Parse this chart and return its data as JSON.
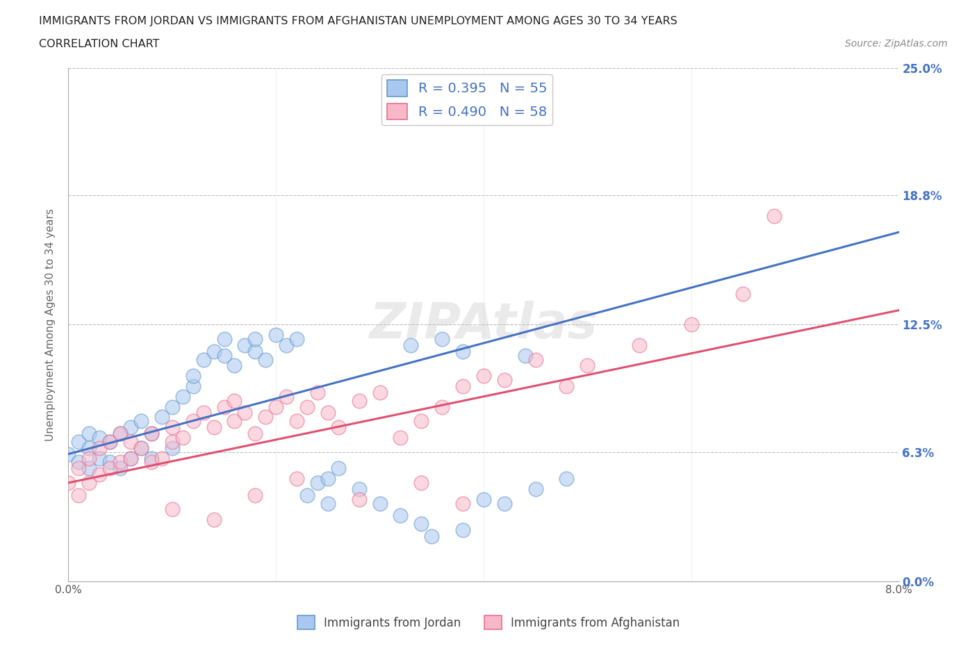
{
  "title_line1": "IMMIGRANTS FROM JORDAN VS IMMIGRANTS FROM AFGHANISTAN UNEMPLOYMENT AMONG AGES 30 TO 34 YEARS",
  "title_line2": "CORRELATION CHART",
  "source_text": "Source: ZipAtlas.com",
  "ylabel": "Unemployment Among Ages 30 to 34 years",
  "xlim": [
    0.0,
    0.08
  ],
  "ylim": [
    0.0,
    0.25
  ],
  "xticks": [
    0.0,
    0.02,
    0.04,
    0.06,
    0.08
  ],
  "xticklabels": [
    "0.0%",
    "",
    "",
    "",
    "8.0%"
  ],
  "yticks": [
    0.0,
    0.063,
    0.125,
    0.188,
    0.25
  ],
  "yticklabels_right": [
    "0.0%",
    "6.3%",
    "12.5%",
    "18.8%",
    "25.0%"
  ],
  "jordan_color": "#a8c8f0",
  "afghanistan_color": "#f8b8ca",
  "jordan_edge_color": "#6699cc",
  "afghanistan_edge_color": "#e87090",
  "jordan_line_color": "#4472c4",
  "afghanistan_line_color": "#e05070",
  "jordan_R": 0.395,
  "jordan_N": 55,
  "afghanistan_R": 0.49,
  "afghanistan_N": 58,
  "jordan_intercept": 0.062,
  "jordan_slope": 1.35,
  "afghanistan_intercept": 0.048,
  "afghanistan_slope": 1.05,
  "background_color": "#ffffff",
  "grid_color": "#bbbbbb",
  "jordan_x": [
    0.0,
    0.001,
    0.001,
    0.002,
    0.002,
    0.002,
    0.003,
    0.003,
    0.004,
    0.004,
    0.005,
    0.005,
    0.006,
    0.006,
    0.007,
    0.007,
    0.008,
    0.008,
    0.009,
    0.01,
    0.01,
    0.011,
    0.012,
    0.012,
    0.013,
    0.014,
    0.015,
    0.015,
    0.016,
    0.017,
    0.018,
    0.018,
    0.019,
    0.02,
    0.021,
    0.022,
    0.023,
    0.024,
    0.025,
    0.025,
    0.026,
    0.028,
    0.03,
    0.032,
    0.034,
    0.035,
    0.038,
    0.04,
    0.042,
    0.045,
    0.033,
    0.036,
    0.038,
    0.044,
    0.048
  ],
  "jordan_y": [
    0.062,
    0.058,
    0.068,
    0.055,
    0.065,
    0.072,
    0.06,
    0.07,
    0.058,
    0.068,
    0.055,
    0.072,
    0.06,
    0.075,
    0.065,
    0.078,
    0.06,
    0.072,
    0.08,
    0.065,
    0.085,
    0.09,
    0.095,
    0.1,
    0.108,
    0.112,
    0.11,
    0.118,
    0.105,
    0.115,
    0.112,
    0.118,
    0.108,
    0.12,
    0.115,
    0.118,
    0.042,
    0.048,
    0.038,
    0.05,
    0.055,
    0.045,
    0.038,
    0.032,
    0.028,
    0.022,
    0.025,
    0.04,
    0.038,
    0.045,
    0.115,
    0.118,
    0.112,
    0.11,
    0.05
  ],
  "afghanistan_x": [
    0.0,
    0.001,
    0.001,
    0.002,
    0.002,
    0.003,
    0.003,
    0.004,
    0.004,
    0.005,
    0.005,
    0.006,
    0.006,
    0.007,
    0.008,
    0.008,
    0.009,
    0.01,
    0.01,
    0.011,
    0.012,
    0.013,
    0.014,
    0.015,
    0.016,
    0.016,
    0.017,
    0.018,
    0.019,
    0.02,
    0.021,
    0.022,
    0.023,
    0.024,
    0.025,
    0.026,
    0.028,
    0.03,
    0.032,
    0.034,
    0.036,
    0.038,
    0.04,
    0.042,
    0.045,
    0.048,
    0.05,
    0.055,
    0.06,
    0.065,
    0.018,
    0.022,
    0.028,
    0.034,
    0.038,
    0.01,
    0.014,
    0.068
  ],
  "afghanistan_y": [
    0.048,
    0.042,
    0.055,
    0.048,
    0.06,
    0.052,
    0.065,
    0.055,
    0.068,
    0.058,
    0.072,
    0.06,
    0.068,
    0.065,
    0.058,
    0.072,
    0.06,
    0.068,
    0.075,
    0.07,
    0.078,
    0.082,
    0.075,
    0.085,
    0.078,
    0.088,
    0.082,
    0.072,
    0.08,
    0.085,
    0.09,
    0.078,
    0.085,
    0.092,
    0.082,
    0.075,
    0.088,
    0.092,
    0.07,
    0.078,
    0.085,
    0.095,
    0.1,
    0.098,
    0.108,
    0.095,
    0.105,
    0.115,
    0.125,
    0.14,
    0.042,
    0.05,
    0.04,
    0.048,
    0.038,
    0.035,
    0.03,
    0.178
  ]
}
